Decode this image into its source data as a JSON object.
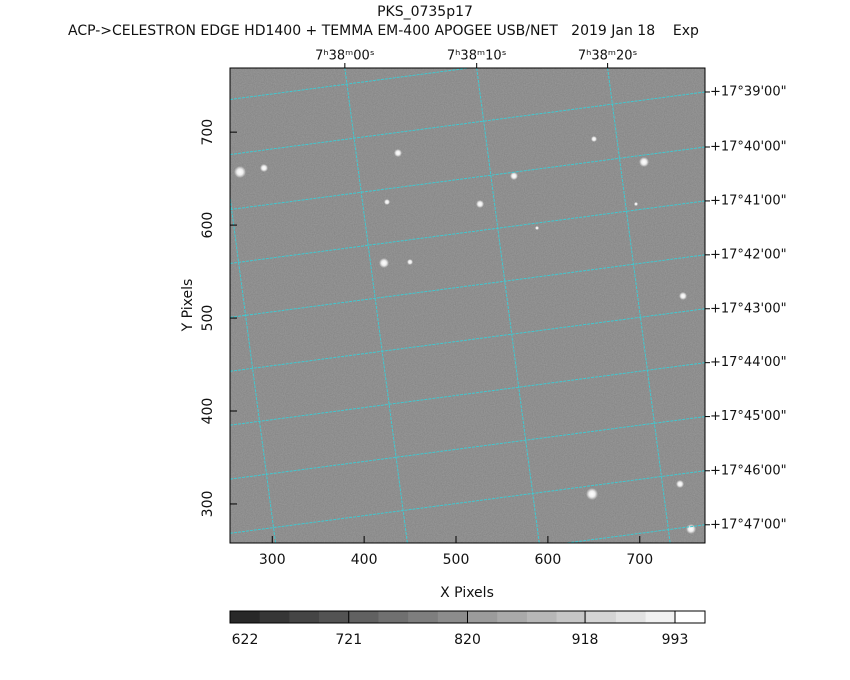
{
  "chart_data": {
    "type": "image",
    "title": "PKS_0735p17",
    "subtitle": "ACP->CELESTRON EDGE HD1400 + TEMMA EM-400 APOGEE USB/NET   2019 Jan 18    Exp",
    "xlabel": "X Pixels",
    "ylabel": "Y Pixels",
    "xlim": [
      254,
      771
    ],
    "ylim": [
      258,
      769
    ],
    "xticks": [
      300,
      400,
      500,
      600,
      700
    ],
    "yticks": [
      300,
      400,
      500,
      600,
      700
    ],
    "x2ticks": [
      {
        "value": 379,
        "label": "7ʰ38ᵐ00ˢ"
      },
      {
        "value": 522.5,
        "label": "7ʰ38ᵐ10ˢ"
      },
      {
        "value": 665,
        "label": "7ʰ38ᵐ20ˢ"
      }
    ],
    "y2ticks": [
      {
        "value": 743.2,
        "label": "+17°39'00\""
      },
      {
        "value": 684,
        "label": "+17°40'00\""
      },
      {
        "value": 626,
        "label": "+17°41'00\""
      },
      {
        "value": 568,
        "label": "+17°42'00\""
      },
      {
        "value": 510,
        "label": "+17°43'00\""
      },
      {
        "value": 452,
        "label": "+17°44'00\""
      },
      {
        "value": 394,
        "label": "+17°45'00\""
      },
      {
        "value": 335.7,
        "label": "+17°46'00\""
      },
      {
        "value": 277.6,
        "label": "+17°47'00\""
      }
    ],
    "grid": true,
    "grid_color": "#40c8d0",
    "clim": [
      622,
      1018
    ],
    "cticks": [
      622,
      721,
      820,
      918,
      993
    ]
  }
}
